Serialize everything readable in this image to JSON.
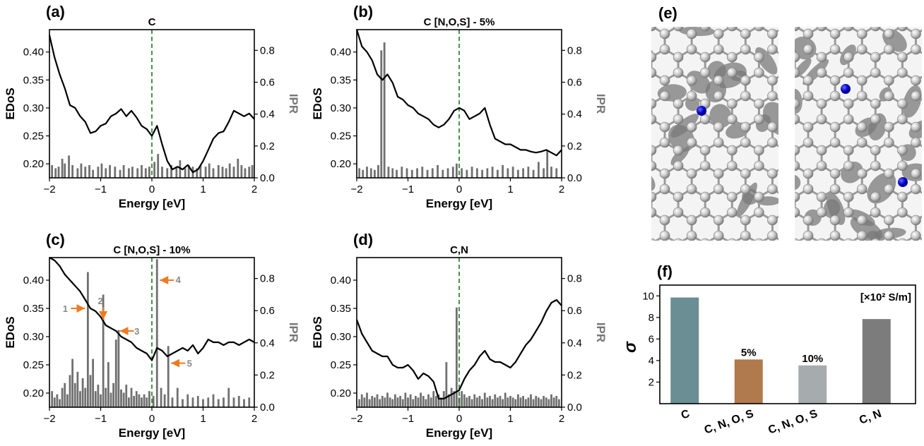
{
  "panel_labels": [
    "(a)",
    "(b)",
    "(c)",
    "(d)",
    "(e)",
    "(f)"
  ],
  "colors": {
    "curve": "#000000",
    "ipr_bars": "#707070",
    "fermi_line": "#1a7a1a",
    "arrow": "#f07a22",
    "atom_carbon": "#c8c8c8",
    "atom_dopant": "#0000cc"
  },
  "chart_data": [
    {
      "type": "line",
      "panel": "(a)",
      "title": "C",
      "xlabel": "Energy [eV]",
      "ylabel": "EDoS",
      "ylabel_right": "IPR",
      "xlim": [
        -2,
        2
      ],
      "ylim": [
        0.175,
        0.44
      ],
      "ylim_right": [
        0,
        0.93
      ],
      "xticks": [
        "−2",
        "−1",
        "0",
        "1",
        "2"
      ],
      "yticks": [
        "0.20",
        "0.25",
        "0.30",
        "0.35",
        "0.40"
      ],
      "yticks_right": [
        "0.0",
        "0.2",
        "0.4",
        "0.6",
        "0.8"
      ],
      "fermi_level": 0,
      "series": [
        {
          "x": [
            -2.0,
            -1.9,
            -1.8,
            -1.7,
            -1.6,
            -1.5,
            -1.4,
            -1.3,
            -1.2,
            -1.1,
            -1.0,
            -0.9,
            -0.8,
            -0.7,
            -0.6,
            -0.5,
            -0.4,
            -0.3,
            -0.2,
            -0.1,
            0.0,
            0.1,
            0.2,
            0.3,
            0.4,
            0.5,
            0.6,
            0.7,
            0.8,
            0.9,
            1.0,
            1.1,
            1.2,
            1.3,
            1.4,
            1.5,
            1.6,
            1.7,
            1.8,
            1.9,
            2.0
          ],
          "y": [
            0.43,
            0.39,
            0.36,
            0.335,
            0.305,
            0.3,
            0.285,
            0.275,
            0.255,
            0.258,
            0.268,
            0.272,
            0.285,
            0.29,
            0.298,
            0.285,
            0.295,
            0.283,
            0.268,
            0.262,
            0.25,
            0.268,
            0.235,
            0.205,
            0.19,
            0.195,
            0.19,
            0.198,
            0.185,
            0.19,
            0.205,
            0.225,
            0.245,
            0.255,
            0.258,
            0.275,
            0.295,
            0.29,
            0.285,
            0.29,
            0.28
          ]
        }
      ],
      "ipr_bars": {
        "x": [
          -1.95,
          -1.88,
          -1.82,
          -1.75,
          -1.7,
          -1.62,
          -1.55,
          -1.45,
          -1.38,
          -1.3,
          -1.22,
          -1.15,
          -1.05,
          -0.98,
          -0.9,
          -0.82,
          -0.72,
          -0.62,
          -0.55,
          -0.45,
          -0.38,
          -0.28,
          -0.2,
          -0.12,
          -0.05,
          0.05,
          0.12,
          0.2,
          0.3,
          0.38,
          0.48,
          0.55,
          0.65,
          0.72,
          0.8,
          0.88,
          0.95,
          1.05,
          1.12,
          1.2,
          1.3,
          1.38,
          1.45,
          1.52,
          1.6,
          1.68,
          1.75,
          1.82,
          1.9,
          1.96
        ],
        "y": [
          0.08,
          0.06,
          0.07,
          0.12,
          0.09,
          0.14,
          0.08,
          0.06,
          0.09,
          0.07,
          0.08,
          0.05,
          0.07,
          0.09,
          0.06,
          0.08,
          0.07,
          0.05,
          0.08,
          0.06,
          0.07,
          0.06,
          0.08,
          0.06,
          0.07,
          0.1,
          0.15,
          0.07,
          0.06,
          0.08,
          0.07,
          0.11,
          0.06,
          0.08,
          0.07,
          0.06,
          0.08,
          0.07,
          0.09,
          0.06,
          0.08,
          0.07,
          0.06,
          0.09,
          0.07,
          0.12,
          0.08,
          0.06,
          0.07,
          0.08
        ]
      }
    },
    {
      "type": "line",
      "panel": "(b)",
      "title": "C [N,O,S] - 5%",
      "xlabel": "Energy [eV]",
      "ylabel": "EDoS",
      "ylabel_right": "IPR",
      "xlim": [
        -2,
        2
      ],
      "ylim": [
        0.175,
        0.44
      ],
      "ylim_right": [
        0,
        0.93
      ],
      "xticks": [
        "−2",
        "−1",
        "0",
        "1",
        "2"
      ],
      "yticks": [
        "0.20",
        "0.25",
        "0.30",
        "0.35",
        "0.40"
      ],
      "yticks_right": [
        "0.0",
        "0.2",
        "0.4",
        "0.6",
        "0.8"
      ],
      "fermi_level": 0,
      "series": [
        {
          "x": [
            -2.0,
            -1.9,
            -1.8,
            -1.7,
            -1.6,
            -1.5,
            -1.4,
            -1.3,
            -1.2,
            -1.1,
            -1.0,
            -0.9,
            -0.8,
            -0.7,
            -0.6,
            -0.5,
            -0.4,
            -0.3,
            -0.2,
            -0.1,
            0.0,
            0.1,
            0.2,
            0.3,
            0.4,
            0.5,
            0.6,
            0.7,
            0.8,
            0.9,
            1.0,
            1.1,
            1.2,
            1.3,
            1.4,
            1.5,
            1.6,
            1.7,
            1.8,
            1.9,
            2.0
          ],
          "y": [
            0.44,
            0.41,
            0.4,
            0.385,
            0.36,
            0.35,
            0.36,
            0.345,
            0.32,
            0.315,
            0.305,
            0.3,
            0.29,
            0.285,
            0.28,
            0.27,
            0.265,
            0.27,
            0.28,
            0.295,
            0.3,
            0.295,
            0.28,
            0.285,
            0.29,
            0.3,
            0.27,
            0.245,
            0.24,
            0.235,
            0.235,
            0.23,
            0.225,
            0.225,
            0.222,
            0.22,
            0.222,
            0.225,
            0.22,
            0.215,
            0.225
          ]
        }
      ],
      "ipr_bars": {
        "x": [
          -1.95,
          -1.88,
          -1.8,
          -1.72,
          -1.65,
          -1.58,
          -1.52,
          -1.46,
          -1.38,
          -1.3,
          -1.22,
          -1.12,
          -1.02,
          -0.92,
          -0.82,
          -0.72,
          -0.62,
          -0.52,
          -0.42,
          -0.32,
          -0.22,
          -0.12,
          -0.05,
          0.05,
          0.15,
          0.25,
          0.35,
          0.45,
          0.55,
          0.65,
          0.75,
          0.85,
          0.95,
          1.05,
          1.15,
          1.25,
          1.35,
          1.45,
          1.55,
          1.65,
          1.72,
          1.8,
          1.9
        ],
        "y": [
          0.06,
          0.05,
          0.07,
          0.06,
          0.05,
          0.08,
          0.8,
          0.85,
          0.07,
          0.06,
          0.05,
          0.07,
          0.06,
          0.05,
          0.06,
          0.07,
          0.05,
          0.06,
          0.08,
          0.05,
          0.06,
          0.07,
          0.09,
          0.06,
          0.05,
          0.07,
          0.06,
          0.05,
          0.06,
          0.07,
          0.05,
          0.08,
          0.06,
          0.07,
          0.05,
          0.06,
          0.07,
          0.05,
          0.1,
          0.06,
          0.17,
          0.07,
          0.06
        ]
      }
    },
    {
      "type": "line",
      "panel": "(c)",
      "title": "C [N,O,S] - 10%",
      "xlabel": "Energy [eV]",
      "ylabel": "EDoS",
      "ylabel_right": "IPR",
      "xlim": [
        -2,
        2
      ],
      "ylim": [
        0.175,
        0.44
      ],
      "ylim_right": [
        0,
        0.93
      ],
      "xticks": [
        "−2",
        "−1",
        "0",
        "1",
        "2"
      ],
      "yticks": [
        "0.20",
        "0.25",
        "0.30",
        "0.35",
        "0.40"
      ],
      "yticks_right": [
        "0.0",
        "0.2",
        "0.4",
        "0.6",
        "0.8"
      ],
      "fermi_level": 0,
      "annotations": [
        {
          "label": "1",
          "x": -1.25,
          "y": 0.35
        },
        {
          "label": "2",
          "x": -0.95,
          "y": 0.325
        },
        {
          "label": "3",
          "x": -0.68,
          "y": 0.31
        },
        {
          "label": "4",
          "x": 0.1,
          "y": 0.4
        },
        {
          "label": "5",
          "x": 0.32,
          "y": 0.253
        }
      ],
      "series": [
        {
          "x": [
            -2.0,
            -1.9,
            -1.8,
            -1.7,
            -1.6,
            -1.5,
            -1.4,
            -1.3,
            -1.2,
            -1.1,
            -1.0,
            -0.9,
            -0.8,
            -0.7,
            -0.6,
            -0.5,
            -0.4,
            -0.3,
            -0.2,
            -0.1,
            0.0,
            0.1,
            0.2,
            0.3,
            0.4,
            0.5,
            0.6,
            0.7,
            0.8,
            0.9,
            1.0,
            1.1,
            1.2,
            1.3,
            1.4,
            1.5,
            1.6,
            1.7,
            1.8,
            1.9,
            2.0
          ],
          "y": [
            0.44,
            0.435,
            0.425,
            0.41,
            0.4,
            0.39,
            0.38,
            0.365,
            0.35,
            0.345,
            0.335,
            0.32,
            0.315,
            0.31,
            0.3,
            0.295,
            0.29,
            0.28,
            0.275,
            0.27,
            0.258,
            0.28,
            0.275,
            0.265,
            0.27,
            0.275,
            0.28,
            0.275,
            0.285,
            0.27,
            0.28,
            0.295,
            0.29,
            0.29,
            0.285,
            0.29,
            0.29,
            0.285,
            0.29,
            0.295,
            0.29
          ]
        }
      ],
      "ipr_bars": {
        "x": [
          -1.95,
          -1.9,
          -1.85,
          -1.8,
          -1.75,
          -1.7,
          -1.65,
          -1.6,
          -1.55,
          -1.5,
          -1.45,
          -1.4,
          -1.35,
          -1.3,
          -1.25,
          -1.2,
          -1.15,
          -1.1,
          -1.05,
          -1.0,
          -0.95,
          -0.9,
          -0.85,
          -0.8,
          -0.75,
          -0.7,
          -0.65,
          -0.6,
          -0.55,
          -0.5,
          -0.45,
          -0.4,
          -0.35,
          -0.3,
          -0.25,
          -0.2,
          -0.15,
          -0.1,
          -0.05,
          0.03,
          0.1,
          0.18,
          0.25,
          0.32,
          0.4,
          0.5,
          0.6,
          0.7,
          0.8,
          0.9,
          1.0,
          1.1,
          1.2,
          1.3,
          1.4,
          1.5,
          1.6,
          1.7,
          1.8,
          1.9
        ],
        "y": [
          0.1,
          0.06,
          0.08,
          0.05,
          0.12,
          0.15,
          0.08,
          0.2,
          0.3,
          0.15,
          0.22,
          0.1,
          0.18,
          0.12,
          0.84,
          0.2,
          0.3,
          0.1,
          0.14,
          0.08,
          0.7,
          0.12,
          0.28,
          0.09,
          0.15,
          0.42,
          0.48,
          0.11,
          0.09,
          0.14,
          0.06,
          0.12,
          0.07,
          0.1,
          0.08,
          0.06,
          0.08,
          0.06,
          0.1,
          0.07,
          0.92,
          0.12,
          0.08,
          0.38,
          0.06,
          0.12,
          0.05,
          0.08,
          0.06,
          0.07,
          0.05,
          0.06,
          0.08,
          0.05,
          0.06,
          0.12,
          0.06,
          0.07,
          0.05,
          0.06
        ]
      }
    },
    {
      "type": "line",
      "panel": "(d)",
      "title": "C,N",
      "xlabel": "Energy [eV]",
      "ylabel": "EDoS",
      "ylabel_right": "IPR",
      "xlim": [
        -2,
        2
      ],
      "ylim": [
        0.175,
        0.44
      ],
      "ylim_right": [
        0,
        0.93
      ],
      "xticks": [
        "−2",
        "−1",
        "0",
        "1",
        "2"
      ],
      "yticks": [
        "0.20",
        "0.25",
        "0.30",
        "0.35",
        "0.40"
      ],
      "yticks_right": [
        "0.0",
        "0.2",
        "0.4",
        "0.6",
        "0.8"
      ],
      "fermi_level": 0,
      "series": [
        {
          "x": [
            -2.0,
            -1.9,
            -1.8,
            -1.7,
            -1.6,
            -1.5,
            -1.4,
            -1.3,
            -1.2,
            -1.1,
            -1.0,
            -0.9,
            -0.8,
            -0.7,
            -0.6,
            -0.5,
            -0.4,
            -0.3,
            -0.2,
            -0.1,
            0.0,
            0.1,
            0.2,
            0.3,
            0.4,
            0.5,
            0.6,
            0.7,
            0.8,
            0.9,
            1.0,
            1.1,
            1.2,
            1.3,
            1.4,
            1.5,
            1.6,
            1.7,
            1.8,
            1.9,
            2.0
          ],
          "y": [
            0.33,
            0.305,
            0.29,
            0.275,
            0.27,
            0.265,
            0.265,
            0.25,
            0.245,
            0.245,
            0.25,
            0.24,
            0.225,
            0.235,
            0.23,
            0.22,
            0.19,
            0.19,
            0.195,
            0.2,
            0.205,
            0.225,
            0.24,
            0.25,
            0.265,
            0.275,
            0.26,
            0.255,
            0.255,
            0.25,
            0.245,
            0.255,
            0.27,
            0.285,
            0.295,
            0.31,
            0.325,
            0.345,
            0.36,
            0.365,
            0.355
          ]
        }
      ],
      "ipr_bars": {
        "x": [
          -1.95,
          -1.9,
          -1.85,
          -1.8,
          -1.75,
          -1.7,
          -1.65,
          -1.6,
          -1.55,
          -1.5,
          -1.45,
          -1.4,
          -1.35,
          -1.3,
          -1.25,
          -1.2,
          -1.15,
          -1.1,
          -1.05,
          -1.0,
          -0.95,
          -0.9,
          -0.85,
          -0.8,
          -0.75,
          -0.7,
          -0.65,
          -0.6,
          -0.55,
          -0.5,
          -0.45,
          -0.4,
          -0.35,
          -0.3,
          -0.25,
          -0.2,
          -0.15,
          -0.1,
          -0.05,
          0.0,
          0.05,
          0.1,
          0.15,
          0.2,
          0.25,
          0.3,
          0.35,
          0.4,
          0.45,
          0.5,
          0.55,
          0.6,
          0.65,
          0.7,
          0.75,
          0.8,
          0.85,
          0.9,
          0.95,
          1.0,
          1.05,
          1.1,
          1.15,
          1.2,
          1.25,
          1.3,
          1.35,
          1.4,
          1.45,
          1.5,
          1.55,
          1.6,
          1.65,
          1.7,
          1.75,
          1.8,
          1.85,
          1.9,
          1.95
        ],
        "y": [
          0.05,
          0.08,
          0.06,
          0.09,
          0.05,
          0.07,
          0.06,
          0.08,
          0.05,
          0.07,
          0.06,
          0.09,
          0.06,
          0.05,
          0.08,
          0.06,
          0.07,
          0.05,
          0.09,
          0.06,
          0.08,
          0.05,
          0.07,
          0.06,
          0.09,
          0.07,
          0.05,
          0.08,
          0.06,
          0.1,
          0.07,
          0.08,
          0.06,
          0.1,
          0.28,
          0.08,
          0.12,
          0.1,
          0.62,
          0.06,
          0.1,
          0.08,
          0.06,
          0.07,
          0.05,
          0.08,
          0.06,
          0.07,
          0.05,
          0.09,
          0.06,
          0.07,
          0.05,
          0.08,
          0.06,
          0.07,
          0.05,
          0.09,
          0.06,
          0.07,
          0.06,
          0.05,
          0.08,
          0.06,
          0.07,
          0.05,
          0.06,
          0.08,
          0.05,
          0.07,
          0.06,
          0.05,
          0.07,
          0.06,
          0.05,
          0.08,
          0.06,
          0.07,
          0.05
        ]
      }
    },
    {
      "type": "bar",
      "panel": "(f)",
      "categories": [
        "C",
        "C, N, O, S",
        "C, N, O, S",
        "C, N"
      ],
      "values": [
        9.85,
        4.1,
        3.55,
        7.85
      ],
      "bar_labels": [
        "",
        "5%",
        "10%",
        ""
      ],
      "bar_colors": [
        "#6b8e94",
        "#b07a4c",
        "#a6abae",
        "#7c7c7c"
      ],
      "ylabel": "σ",
      "unit_label": "[×10² S/m]",
      "ylim": [
        0,
        11
      ],
      "yticks": [
        "2",
        "4",
        "6",
        "8",
        "10"
      ]
    }
  ]
}
